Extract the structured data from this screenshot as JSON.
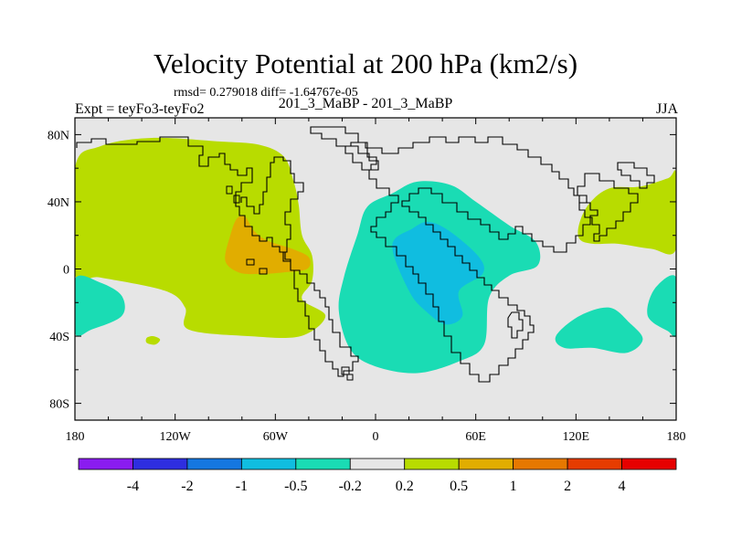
{
  "chart_data": {
    "type": "contour_map",
    "title": "Velocity Potential at 200 hPa (km2/s)",
    "stats_line": "rmsd= 0.279018 diff= -1.64767e-05",
    "experiment": "Expt = teyFo3-teyFo2",
    "case": "201_3_MaBP - 201_3_MaBP",
    "season": "JJA",
    "lon_range": [
      -180,
      180
    ],
    "lat_range": [
      -90,
      90
    ],
    "x_ticks": [
      {
        "value": -180,
        "label": "180"
      },
      {
        "value": -120,
        "label": "120W"
      },
      {
        "value": -60,
        "label": "60W"
      },
      {
        "value": 0,
        "label": "0"
      },
      {
        "value": 60,
        "label": "60E"
      },
      {
        "value": 120,
        "label": "120E"
      },
      {
        "value": 180,
        "label": "180"
      }
    ],
    "y_ticks": [
      {
        "value": 80,
        "label": "80N"
      },
      {
        "value": 40,
        "label": "40N"
      },
      {
        "value": 0,
        "label": "0"
      },
      {
        "value": -40,
        "label": "40S"
      },
      {
        "value": -80,
        "label": "80S"
      }
    ],
    "colorbar": {
      "levels": [
        "-4",
        "-2",
        "-1",
        "-0.5",
        "-0.2",
        "0.2",
        "0.5",
        "1",
        "2",
        "4"
      ],
      "colors": [
        "#8a1cf0",
        "#2e2ee0",
        "#1577e0",
        "#10bde0",
        "#1adcb4",
        "#e6e6e6",
        "#b8dc00",
        "#e1ad00",
        "#e67800",
        "#e63c00",
        "#e60000"
      ]
    },
    "regions": [
      {
        "name": "positive-anomaly-americas",
        "range": "0.2 to 0.5",
        "color": "#b8dc00",
        "outline": [
          [
            -180,
            60
          ],
          [
            -165,
            73
          ],
          [
            -135,
            78
          ],
          [
            -95,
            76
          ],
          [
            -70,
            74
          ],
          [
            -55,
            67
          ],
          [
            -49,
            52
          ],
          [
            -46,
            38
          ],
          [
            -44,
            20
          ],
          [
            -38,
            8
          ],
          [
            -38,
            -7
          ],
          [
            -44,
            -18
          ],
          [
            -30,
            -28
          ],
          [
            -45,
            -40
          ],
          [
            -75,
            -40
          ],
          [
            -112,
            -36
          ],
          [
            -114,
            -23
          ],
          [
            -126,
            -13
          ],
          [
            -165,
            -5
          ],
          [
            -180,
            -3
          ]
        ]
      },
      {
        "name": "positive-core-americas",
        "range": "0.5 to 1",
        "color": "#e1ad00",
        "outline": [
          [
            -83,
            30
          ],
          [
            -78,
            31
          ],
          [
            -73,
            23
          ],
          [
            -65,
            17
          ],
          [
            -50,
            12
          ],
          [
            -40,
            7
          ],
          [
            -41,
            0
          ],
          [
            -55,
            -2
          ],
          [
            -70,
            -3
          ],
          [
            -82,
            -2
          ],
          [
            -90,
            5
          ],
          [
            -87,
            20
          ]
        ]
      },
      {
        "name": "positive-anomaly-pacific",
        "range": "0.2 to 0.5",
        "color": "#b8dc00",
        "outline": [
          [
            122,
            27
          ],
          [
            128,
            39
          ],
          [
            140,
            48
          ],
          [
            158,
            49
          ],
          [
            175,
            54
          ],
          [
            180,
            56
          ],
          [
            180,
            12
          ],
          [
            165,
            12
          ],
          [
            145,
            15
          ],
          [
            130,
            15
          ],
          [
            122,
            18
          ]
        ]
      },
      {
        "name": "positive-blob-south-pacific",
        "range": "0.2 to 0.5",
        "color": "#b8dc00",
        "outline": [
          [
            -137,
            -41
          ],
          [
            -133,
            -40
          ],
          [
            -129,
            -42
          ],
          [
            -132,
            -45
          ],
          [
            -137,
            -44
          ]
        ]
      },
      {
        "name": "negative-anomaly-africa",
        "range": "-0.5 to -0.2",
        "color": "#1adcb4",
        "outline": [
          [
            -5,
            37
          ],
          [
            10,
            45
          ],
          [
            25,
            52
          ],
          [
            45,
            50
          ],
          [
            60,
            40
          ],
          [
            80,
            26
          ],
          [
            96,
            16
          ],
          [
            97,
            2
          ],
          [
            80,
            -4
          ],
          [
            68,
            -17
          ],
          [
            65,
            -45
          ],
          [
            50,
            -55
          ],
          [
            25,
            -62
          ],
          [
            0,
            -58
          ],
          [
            -15,
            -48
          ],
          [
            -22,
            -25
          ],
          [
            -19,
            -5
          ],
          [
            -11,
            20
          ]
        ]
      },
      {
        "name": "negative-core-africa",
        "range": "-1 to -0.5",
        "color": "#10bde0",
        "outline": [
          [
            10,
            14
          ],
          [
            22,
            24
          ],
          [
            32,
            28
          ],
          [
            45,
            22
          ],
          [
            62,
            7
          ],
          [
            64,
            -3
          ],
          [
            50,
            -13
          ],
          [
            52,
            -28
          ],
          [
            42,
            -33
          ],
          [
            30,
            -25
          ],
          [
            20,
            -13
          ]
        ]
      },
      {
        "name": "negative-anomaly-east-pacific",
        "range": "-0.5 to -0.2",
        "color": "#1adcb4",
        "outline": [
          [
            -180,
            -6
          ],
          [
            -165,
            -8
          ],
          [
            -152,
            -16
          ],
          [
            -152,
            -28
          ],
          [
            -170,
            -36
          ],
          [
            -180,
            -38
          ]
        ]
      },
      {
        "name": "negative-anomaly-indian-ocean",
        "range": "-0.5 to -0.2",
        "color": "#1adcb4",
        "outline": [
          [
            108,
            -40
          ],
          [
            122,
            -28
          ],
          [
            140,
            -23
          ],
          [
            152,
            -32
          ],
          [
            160,
            -42
          ],
          [
            150,
            -50
          ],
          [
            130,
            -47
          ],
          [
            113,
            -47
          ]
        ]
      },
      {
        "name": "negative-anomaly-west-pacific",
        "range": "-0.5 to -0.2",
        "color": "#1adcb4",
        "outline": [
          [
            180,
            -5
          ],
          [
            167,
            -12
          ],
          [
            163,
            -28
          ],
          [
            175,
            -37
          ],
          [
            180,
            -38
          ]
        ]
      }
    ]
  }
}
